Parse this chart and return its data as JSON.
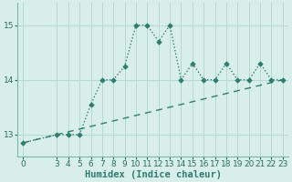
{
  "title": "",
  "xlabel": "Humidex (Indice chaleur)",
  "ylabel": "",
  "bg_color": "#d8eeeb",
  "line_color": "#2e7d6e",
  "grid_color": "#b8d8d4",
  "x_data": [
    0,
    3,
    4,
    5,
    6,
    7,
    8,
    9,
    10,
    11,
    12,
    13,
    14,
    15,
    16,
    17,
    18,
    19,
    20,
    21,
    22,
    23
  ],
  "y_data": [
    12.85,
    13.0,
    13.0,
    13.0,
    13.55,
    14.0,
    14.0,
    14.25,
    15.0,
    15.0,
    14.7,
    15.0,
    14.0,
    14.3,
    14.0,
    14.0,
    14.3,
    14.0,
    14.0,
    14.3,
    14.0,
    14.0
  ],
  "trend_x": [
    0,
    23
  ],
  "trend_y": [
    12.85,
    14.0
  ],
  "ylim": [
    12.6,
    15.4
  ],
  "xlim": [
    -0.5,
    23.5
  ],
  "yticks": [
    13,
    14,
    15
  ],
  "xticks": [
    0,
    3,
    4,
    5,
    6,
    7,
    8,
    9,
    10,
    11,
    12,
    13,
    14,
    15,
    16,
    17,
    18,
    19,
    20,
    21,
    22,
    23
  ],
  "tick_fontsize": 6.5,
  "xlabel_fontsize": 7.5
}
